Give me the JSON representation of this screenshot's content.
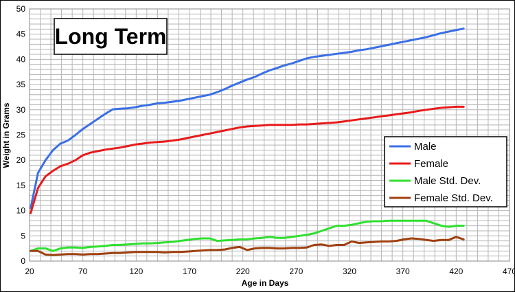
{
  "chart_data": {
    "type": "line",
    "title": "Long Term",
    "xlabel": "Age in Days",
    "ylabel": "Weight in Grams",
    "xlim": [
      20,
      470
    ],
    "ylim": [
      0,
      50
    ],
    "xticks": [
      20,
      70,
      120,
      170,
      220,
      270,
      320,
      370,
      420,
      470
    ],
    "yticks": [
      0,
      5,
      10,
      15,
      20,
      25,
      30,
      35,
      40,
      45,
      50
    ],
    "grid": true,
    "legend_position": "right",
    "x": [
      21,
      28,
      35,
      42,
      49,
      56,
      63,
      70,
      77,
      84,
      91,
      98,
      105,
      112,
      119,
      126,
      133,
      140,
      147,
      154,
      161,
      168,
      175,
      182,
      189,
      196,
      203,
      210,
      217,
      224,
      231,
      238,
      245,
      252,
      259,
      266,
      273,
      280,
      287,
      294,
      301,
      308,
      315,
      322,
      329,
      336,
      343,
      350,
      357,
      364,
      371,
      378,
      385,
      392,
      399,
      406,
      413,
      420,
      427
    ],
    "series": [
      {
        "name": "Male",
        "color": "#3a6fe6",
        "values": [
          10.5,
          17.5,
          20.0,
          22.0,
          23.3,
          23.9,
          25.0,
          26.2,
          27.2,
          28.2,
          29.2,
          30.1,
          30.2,
          30.3,
          30.5,
          30.8,
          31.0,
          31.3,
          31.4,
          31.6,
          31.8,
          32.1,
          32.4,
          32.7,
          33.0,
          33.5,
          34.1,
          34.8,
          35.4,
          36.0,
          36.5,
          37.2,
          37.8,
          38.3,
          38.8,
          39.2,
          39.7,
          40.2,
          40.5,
          40.7,
          40.9,
          41.1,
          41.3,
          41.5,
          41.8,
          42.0,
          42.3,
          42.6,
          42.9,
          43.2,
          43.5,
          43.8,
          44.1,
          44.4,
          44.8,
          45.2,
          45.5,
          45.8,
          46.1
        ]
      },
      {
        "name": "Female",
        "color": "#e81b1b",
        "values": [
          9.5,
          14.5,
          16.8,
          17.9,
          18.8,
          19.3,
          20.0,
          21.0,
          21.5,
          21.8,
          22.1,
          22.3,
          22.5,
          22.8,
          23.1,
          23.3,
          23.5,
          23.6,
          23.7,
          23.9,
          24.1,
          24.4,
          24.7,
          25.0,
          25.3,
          25.6,
          25.9,
          26.2,
          26.5,
          26.7,
          26.8,
          26.9,
          27.0,
          27.0,
          27.0,
          27.0,
          27.1,
          27.1,
          27.2,
          27.3,
          27.4,
          27.5,
          27.7,
          27.9,
          28.1,
          28.3,
          28.5,
          28.7,
          28.9,
          29.1,
          29.3,
          29.5,
          29.8,
          30.0,
          30.2,
          30.4,
          30.5,
          30.6,
          30.6
        ]
      },
      {
        "name": "Male Std. Dev.",
        "color": "#2fe02f",
        "values": [
          2.0,
          2.5,
          2.5,
          2.0,
          2.5,
          2.7,
          2.7,
          2.6,
          2.8,
          2.9,
          3.0,
          3.2,
          3.2,
          3.3,
          3.4,
          3.5,
          3.5,
          3.6,
          3.7,
          3.8,
          4.0,
          4.2,
          4.4,
          4.5,
          4.5,
          4.0,
          4.1,
          4.2,
          4.3,
          4.3,
          4.5,
          4.6,
          4.8,
          4.6,
          4.6,
          4.8,
          5.0,
          5.2,
          5.5,
          6.0,
          6.5,
          7.0,
          7.0,
          7.2,
          7.5,
          7.8,
          7.9,
          7.9,
          8.0,
          8.0,
          8.0,
          8.0,
          8.0,
          8.0,
          7.5,
          7.0,
          6.8,
          7.0,
          7.0
        ]
      },
      {
        "name": "Female Std. Dev.",
        "color": "#a0400f",
        "values": [
          2.0,
          2.0,
          1.3,
          1.2,
          1.3,
          1.4,
          1.4,
          1.3,
          1.4,
          1.4,
          1.5,
          1.6,
          1.6,
          1.7,
          1.8,
          1.8,
          1.8,
          1.8,
          1.7,
          1.8,
          1.8,
          1.9,
          2.0,
          2.1,
          2.2,
          2.2,
          2.3,
          2.6,
          2.8,
          2.2,
          2.5,
          2.6,
          2.6,
          2.5,
          2.5,
          2.6,
          2.6,
          2.7,
          3.2,
          3.3,
          3.0,
          3.2,
          3.2,
          3.9,
          3.6,
          3.7,
          3.8,
          3.9,
          3.9,
          4.0,
          4.3,
          4.5,
          4.4,
          4.2,
          4.0,
          4.2,
          4.2,
          4.8,
          4.3
        ]
      }
    ]
  }
}
